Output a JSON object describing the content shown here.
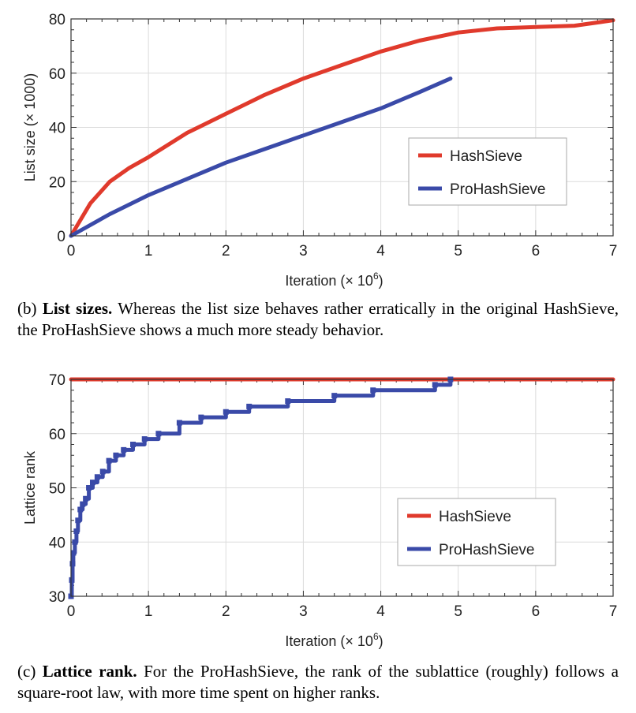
{
  "chart_data": [
    {
      "type": "line",
      "id": "b",
      "xlabel": "Iteration (× 10",
      "xlabel_sup": "6",
      "xlabel_close": ")",
      "ylabel": "List size (× 1000)",
      "xlim": [
        0,
        7
      ],
      "ylim": [
        0,
        80
      ],
      "xticks": [
        "0",
        "1",
        "2",
        "3",
        "4",
        "5",
        "6",
        "7"
      ],
      "yticks": [
        "0",
        "20",
        "40",
        "60",
        "80"
      ],
      "legend_position": "center-right",
      "series": [
        {
          "name": "HashSieve",
          "color": "#e03a2c",
          "x": [
            0,
            0.25,
            0.5,
            0.75,
            1,
            1.5,
            2,
            2.5,
            3,
            3.5,
            4,
            4.5,
            5,
            5.5,
            6,
            6.5,
            7
          ],
          "y": [
            0,
            12,
            20,
            25,
            29,
            38,
            45,
            52,
            58,
            63,
            68,
            72,
            75,
            76.5,
            77,
            77.5,
            79.5
          ]
        },
        {
          "name": "ProHashSieve",
          "color": "#3a4aa8",
          "x": [
            0,
            0.5,
            1,
            1.5,
            2,
            2.5,
            3,
            3.5,
            4,
            4.5,
            4.9
          ],
          "y": [
            0,
            8,
            15,
            21,
            27,
            32,
            37,
            42,
            47,
            53,
            58
          ]
        }
      ]
    },
    {
      "type": "line",
      "id": "c",
      "xlabel": "Iteration (× 10",
      "xlabel_sup": "6",
      "xlabel_close": ")",
      "ylabel": "Lattice rank",
      "xlim": [
        0,
        7
      ],
      "ylim": [
        30,
        70
      ],
      "xticks": [
        "0",
        "1",
        "2",
        "3",
        "4",
        "5",
        "6",
        "7"
      ],
      "yticks": [
        "30",
        "40",
        "50",
        "60",
        "70"
      ],
      "legend_position": "center-right",
      "series": [
        {
          "name": "HashSieve",
          "color": "#e03a2c",
          "x": [
            0,
            7
          ],
          "y": [
            70,
            70
          ]
        },
        {
          "name": "ProHashSieve",
          "color": "#3a4aa8",
          "x": [
            0,
            0.01,
            0.02,
            0.03,
            0.05,
            0.07,
            0.09,
            0.12,
            0.15,
            0.19,
            0.23,
            0.28,
            0.34,
            0.41,
            0.49,
            0.58,
            0.68,
            0.8,
            0.95,
            1.13,
            1.4,
            1.68,
            2.0,
            2.3,
            2.8,
            3.4,
            3.9,
            4.7,
            4.9
          ],
          "y": [
            30,
            33,
            36,
            38,
            40,
            42,
            44,
            46,
            47,
            48,
            50,
            51,
            52,
            53,
            55,
            56,
            57,
            58,
            59,
            60,
            62,
            63,
            64,
            65,
            66,
            67,
            68,
            69,
            70
          ]
        }
      ]
    }
  ],
  "captions": {
    "b": {
      "label": "(b)",
      "bold": "List sizes.",
      "text": "Whereas the list size behaves rather erratically in the original HashSieve, the ProHashSieve shows a much more steady behavior."
    },
    "c": {
      "label": "(c)",
      "bold": "Lattice rank.",
      "text": "For the ProHashSieve, the rank of the sublattice (roughly) follows a square-root law, with more time spent on higher ranks."
    }
  }
}
